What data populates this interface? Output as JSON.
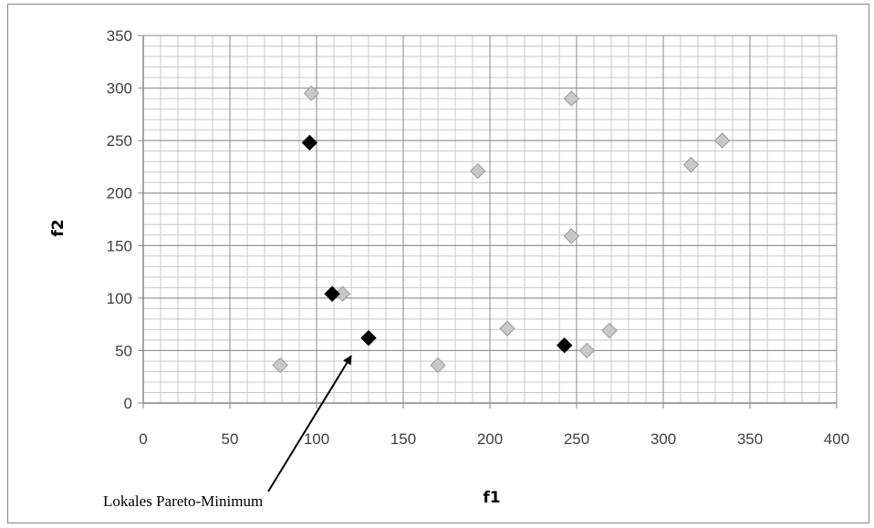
{
  "chart_data": {
    "type": "scatter",
    "title": "",
    "xlabel": "f1",
    "ylabel": "f2",
    "xlim": [
      0,
      400
    ],
    "ylim": [
      0,
      350
    ],
    "x_ticks": [
      "0",
      "50",
      "100",
      "150",
      "200",
      "250",
      "300",
      "350",
      "400"
    ],
    "y_ticks": [
      "0",
      "50",
      "100",
      "150",
      "200",
      "250",
      "300",
      "350"
    ],
    "major_step_x": 50,
    "major_step_y": 50,
    "minor_step_x": 10,
    "minor_step_y": 10,
    "grid": true,
    "legend": null,
    "series": [
      {
        "color": "#c8c8c8",
        "marker": "diamond",
        "points": [
          [
            97,
            295
          ],
          [
            247,
            290
          ],
          [
            334,
            250
          ],
          [
            316,
            227
          ],
          [
            193,
            221
          ],
          [
            247,
            159
          ],
          [
            115,
            104
          ],
          [
            210,
            71
          ],
          [
            269,
            69
          ],
          [
            256,
            50
          ],
          [
            79,
            36
          ],
          [
            170,
            36
          ]
        ]
      },
      {
        "color": "#000000",
        "marker": "diamond",
        "points": [
          [
            96,
            248
          ],
          [
            109,
            104
          ],
          [
            130,
            62
          ],
          [
            243,
            55
          ]
        ]
      }
    ],
    "annotations": [
      {
        "text": "Lokales Pareto-Minimum",
        "arrow_to": [
          120,
          45
        ]
      }
    ]
  }
}
